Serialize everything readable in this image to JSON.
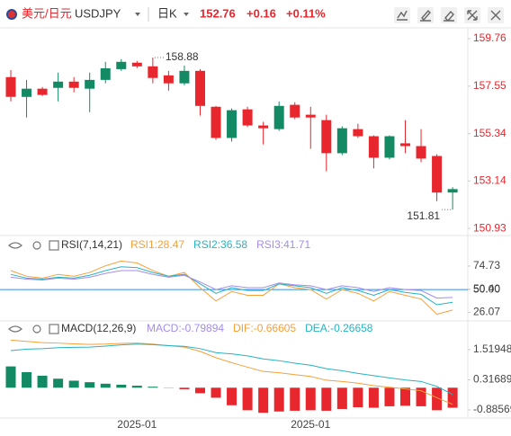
{
  "header": {
    "pair": "美元/日元",
    "symbol": "USDJPY",
    "period": "日K",
    "price": "152.76",
    "change": "+0.16",
    "change_pct": "+0.11%"
  },
  "chart_data": [
    {
      "type": "candlestick",
      "categories": [
        null,
        null,
        null,
        null,
        null,
        null,
        null,
        null,
        "2025-01",
        null,
        null,
        null,
        null,
        null,
        null,
        null,
        null,
        null,
        null,
        "2025-01",
        null,
        null,
        null,
        null,
        null,
        null,
        null,
        null,
        null
      ],
      "open": [
        157.97,
        157.05,
        157.43,
        157.47,
        157.76,
        157.43,
        157.84,
        158.34,
        158.64,
        158.47,
        158.05,
        157.68,
        158.26,
        156.59,
        155.14,
        156.47,
        155.72,
        155.55,
        156.68,
        156.22,
        155.97,
        154.43,
        155.55,
        155.22,
        154.22,
        154.89,
        154.76,
        154.3,
        152.6
      ],
      "high": [
        158.3,
        157.84,
        157.51,
        158.18,
        157.97,
        158.18,
        158.68,
        158.8,
        158.72,
        158.88,
        158.26,
        158.51,
        158.34,
        156.63,
        156.51,
        156.59,
        155.89,
        156.84,
        156.8,
        156.59,
        156.22,
        155.68,
        155.8,
        155.26,
        155.26,
        155.97,
        155.55,
        154.38,
        152.85
      ],
      "low": [
        156.84,
        156.09,
        157.09,
        156.84,
        157.26,
        156.34,
        157.68,
        158.26,
        158.39,
        157.68,
        157.34,
        157.59,
        156.18,
        155.05,
        154.97,
        155.64,
        154.84,
        155.47,
        156.01,
        154.63,
        153.59,
        154.34,
        155.14,
        153.72,
        154.14,
        154.43,
        154.01,
        152.2,
        151.81
      ],
      "close": [
        157.05,
        157.43,
        157.14,
        157.76,
        157.47,
        157.84,
        158.38,
        158.68,
        158.47,
        157.93,
        157.68,
        158.26,
        156.63,
        155.14,
        156.43,
        155.72,
        155.59,
        156.63,
        156.09,
        156.09,
        154.43,
        155.59,
        155.22,
        154.22,
        155.22,
        154.76,
        154.18,
        152.6,
        152.76
      ],
      "up_color": "#138a63",
      "down_color": "#e8262d",
      "ylim": [
        150.6,
        160.26
      ],
      "yticks": [
        159.76,
        157.55,
        155.34,
        153.14,
        150.93
      ],
      "annotations": [
        158.88,
        151.81
      ]
    },
    {
      "type": "line",
      "title": "RSI(7,14,21)",
      "series": [
        {
          "name": "RSI1:28.47",
          "color": "#f5a03a",
          "values": [
            70,
            64,
            62,
            66,
            64,
            68,
            75,
            80,
            78,
            70,
            64,
            68,
            52,
            38,
            48,
            44,
            44,
            56,
            52,
            50,
            40,
            50,
            46,
            38,
            48,
            44,
            40,
            24,
            28.47
          ]
        },
        {
          "name": "RSI2:36.58",
          "color": "#27b3c2",
          "values": [
            66,
            62,
            61,
            63,
            62,
            65,
            70,
            74,
            73,
            68,
            64,
            66,
            56,
            46,
            52,
            49,
            49,
            56,
            54,
            52,
            46,
            52,
            49,
            44,
            50,
            47,
            45,
            34,
            36.58
          ]
        },
        {
          "name": "RSI3:41.71",
          "color": "#a48cf0",
          "values": [
            63,
            61,
            60,
            62,
            61,
            63,
            67,
            70,
            70,
            66,
            63,
            65,
            58,
            50,
            54,
            52,
            52,
            57,
            55,
            54,
            50,
            54,
            52,
            48,
            52,
            50,
            49,
            41,
            41.71
          ]
        }
      ],
      "ylim": [
        17,
        87
      ],
      "yticks": [
        74.73,
        {
          "value": 50.4,
          "label": "50.40"
        },
        {
          "value": 50,
          "label": "50.00"
        },
        26.07
      ]
    },
    {
      "type": "macd",
      "title": "MACD(12,26,9)",
      "histogram": {
        "name": "MACD:-0.79894",
        "color": "#a48cf0",
        "up_color": "#138a63",
        "down_color": "#e8262d",
        "values": [
          0.85,
          0.62,
          0.48,
          0.36,
          0.28,
          0.22,
          0.16,
          0.12,
          0.08,
          0.04,
          0.01,
          -0.06,
          -0.22,
          -0.4,
          -0.7,
          -0.9,
          -1.0,
          -0.95,
          -0.92,
          -0.9,
          -0.92,
          -0.85,
          -0.78,
          -0.8,
          -0.74,
          -0.72,
          -0.74,
          -0.9,
          -0.79894
        ]
      },
      "series": [
        {
          "name": "DIF:-0.66605",
          "color": "#f5a03a",
          "values": [
            1.9,
            1.85,
            1.8,
            1.78,
            1.75,
            1.73,
            1.74,
            1.77,
            1.78,
            1.74,
            1.68,
            1.62,
            1.45,
            1.2,
            1.0,
            0.82,
            0.65,
            0.6,
            0.52,
            0.45,
            0.3,
            0.25,
            0.18,
            0.08,
            0.02,
            -0.05,
            -0.12,
            -0.4,
            -0.66605
          ]
        },
        {
          "name": "DEA:-0.26658",
          "color": "#27b3c2",
          "values": [
            1.48,
            1.54,
            1.56,
            1.6,
            1.61,
            1.62,
            1.66,
            1.71,
            1.74,
            1.72,
            1.68,
            1.65,
            1.56,
            1.4,
            1.35,
            1.27,
            1.15,
            1.08,
            0.98,
            0.9,
            0.76,
            0.68,
            0.57,
            0.48,
            0.39,
            0.31,
            0.25,
            0.05,
            -0.26658
          ]
        }
      ],
      "ylim": [
        -1.21,
        2.02
      ],
      "yticks": [
        1.51948,
        0.31689,
        -0.88569
      ]
    }
  ]
}
